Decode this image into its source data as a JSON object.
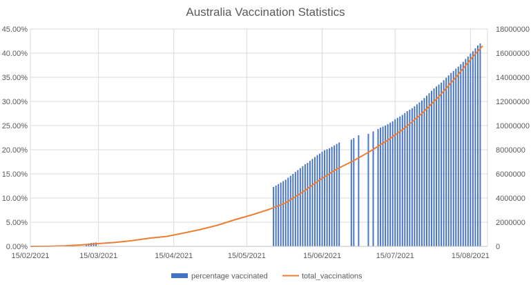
{
  "chart_data": {
    "type": "bar",
    "title": "Australia Vaccination Statistics",
    "x_axis": {
      "type": "date",
      "min": "2021-02-15",
      "max": "2021-08-22",
      "ticks": [
        "2021-02-15",
        "2021-03-15",
        "2021-04-15",
        "2021-05-15",
        "2021-06-15",
        "2021-07-15",
        "2021-08-15"
      ],
      "tick_labels": [
        "15/02/2021",
        "15/03/2021",
        "15/04/2021",
        "15/05/2021",
        "15/06/2021",
        "15/07/2021",
        "15/08/2021"
      ]
    },
    "y_axis_left": {
      "min": 0,
      "max": 45,
      "step": 5,
      "unit": "%",
      "tick_labels": [
        "0.00%",
        "5.00%",
        "10.00%",
        "15.00%",
        "20.00%",
        "25.00%",
        "30.00%",
        "35.00%",
        "40.00%",
        "45.00%"
      ]
    },
    "y_axis_right": {
      "min": 0,
      "max": 18000000,
      "step": 2000000,
      "tick_labels": [
        "0",
        "2000000",
        "4000000",
        "6000000",
        "8000000",
        "10000000",
        "12000000",
        "14000000",
        "16000000",
        "18000000"
      ]
    },
    "grid": true,
    "legend_position": "bottom",
    "legend": [
      {
        "label": "percentage vaccinated",
        "kind": "bar",
        "color": "#4472C4"
      },
      {
        "label": "total_vaccinations",
        "kind": "line",
        "color": "#ED7D31"
      }
    ],
    "series": [
      {
        "name": "percentage vaccinated",
        "type": "bar",
        "axis": "left",
        "color": "#4472C4",
        "points": [
          [
            "2021-03-10",
            0.5
          ],
          [
            "2021-03-11",
            0.6
          ],
          [
            "2021-03-12",
            0.7
          ],
          [
            "2021-03-13",
            0.75
          ],
          [
            "2021-03-14",
            0.8
          ],
          [
            "2021-05-26",
            12.3
          ],
          [
            "2021-05-27",
            12.6
          ],
          [
            "2021-05-28",
            12.9
          ],
          [
            "2021-05-29",
            13.2
          ],
          [
            "2021-05-30",
            13.5
          ],
          [
            "2021-05-31",
            13.8
          ],
          [
            "2021-06-01",
            14.2
          ],
          [
            "2021-06-02",
            14.6
          ],
          [
            "2021-06-03",
            15.0
          ],
          [
            "2021-06-04",
            15.4
          ],
          [
            "2021-06-05",
            15.8
          ],
          [
            "2021-06-06",
            16.2
          ],
          [
            "2021-06-07",
            16.6
          ],
          [
            "2021-06-08",
            17.0
          ],
          [
            "2021-06-09",
            17.3
          ],
          [
            "2021-06-10",
            17.7
          ],
          [
            "2021-06-11",
            18.1
          ],
          [
            "2021-06-12",
            18.5
          ],
          [
            "2021-06-13",
            18.9
          ],
          [
            "2021-06-14",
            19.2
          ],
          [
            "2021-06-15",
            19.6
          ],
          [
            "2021-06-16",
            19.9
          ],
          [
            "2021-06-17",
            20.1
          ],
          [
            "2021-06-18",
            20.3
          ],
          [
            "2021-06-19",
            20.6
          ],
          [
            "2021-06-20",
            20.9
          ],
          [
            "2021-06-21",
            21.2
          ],
          [
            "2021-06-22",
            21.5
          ],
          [
            "2021-06-27",
            22.1
          ],
          [
            "2021-06-28",
            22.4
          ],
          [
            "2021-06-30",
            23.0
          ],
          [
            "2021-07-04",
            23.3
          ],
          [
            "2021-07-06",
            23.8
          ],
          [
            "2021-07-08",
            24.3
          ],
          [
            "2021-07-09",
            24.6
          ],
          [
            "2021-07-10",
            24.8
          ],
          [
            "2021-07-11",
            25.0
          ],
          [
            "2021-07-12",
            25.3
          ],
          [
            "2021-07-13",
            25.6
          ],
          [
            "2021-07-14",
            25.9
          ],
          [
            "2021-07-15",
            26.3
          ],
          [
            "2021-07-16",
            26.6
          ],
          [
            "2021-07-17",
            26.9
          ],
          [
            "2021-07-18",
            27.2
          ],
          [
            "2021-07-19",
            27.6
          ],
          [
            "2021-07-20",
            28.0
          ],
          [
            "2021-07-21",
            28.3
          ],
          [
            "2021-07-22",
            28.6
          ],
          [
            "2021-07-23",
            29.0
          ],
          [
            "2021-07-24",
            29.4
          ],
          [
            "2021-07-25",
            29.8
          ],
          [
            "2021-07-26",
            30.2
          ],
          [
            "2021-07-27",
            30.7
          ],
          [
            "2021-07-28",
            31.2
          ],
          [
            "2021-07-29",
            31.7
          ],
          [
            "2021-07-30",
            32.2
          ],
          [
            "2021-07-31",
            32.7
          ],
          [
            "2021-08-01",
            33.1
          ],
          [
            "2021-08-02",
            33.5
          ],
          [
            "2021-08-03",
            33.9
          ],
          [
            "2021-08-04",
            34.4
          ],
          [
            "2021-08-05",
            34.9
          ],
          [
            "2021-08-06",
            35.4
          ],
          [
            "2021-08-07",
            35.9
          ],
          [
            "2021-08-08",
            36.3
          ],
          [
            "2021-08-09",
            36.8
          ],
          [
            "2021-08-10",
            37.2
          ],
          [
            "2021-08-11",
            37.7
          ],
          [
            "2021-08-12",
            38.2
          ],
          [
            "2021-08-13",
            38.8
          ],
          [
            "2021-08-14",
            39.3
          ],
          [
            "2021-08-15",
            39.9
          ],
          [
            "2021-08-16",
            40.4
          ],
          [
            "2021-08-17",
            41.0
          ],
          [
            "2021-08-18",
            41.6
          ],
          [
            "2021-08-19",
            42.0
          ]
        ]
      },
      {
        "name": "total_vaccinations",
        "type": "line",
        "axis": "right",
        "color": "#ED7D31",
        "points": [
          [
            "2021-02-15",
            0
          ],
          [
            "2021-02-22",
            10000
          ],
          [
            "2021-03-01",
            40000
          ],
          [
            "2021-03-08",
            120000
          ],
          [
            "2021-03-15",
            230000
          ],
          [
            "2021-03-22",
            330000
          ],
          [
            "2021-03-29",
            480000
          ],
          [
            "2021-04-05",
            680000
          ],
          [
            "2021-04-12",
            820000
          ],
          [
            "2021-04-19",
            1100000
          ],
          [
            "2021-04-26",
            1400000
          ],
          [
            "2021-05-03",
            1750000
          ],
          [
            "2021-05-10",
            2200000
          ],
          [
            "2021-05-17",
            2600000
          ],
          [
            "2021-05-24",
            3050000
          ],
          [
            "2021-05-31",
            3600000
          ],
          [
            "2021-06-07",
            4500000
          ],
          [
            "2021-06-14",
            5500000
          ],
          [
            "2021-06-21",
            6400000
          ],
          [
            "2021-06-28",
            7100000
          ],
          [
            "2021-07-05",
            7900000
          ],
          [
            "2021-07-12",
            8800000
          ],
          [
            "2021-07-19",
            9800000
          ],
          [
            "2021-07-26",
            11000000
          ],
          [
            "2021-08-02",
            12400000
          ],
          [
            "2021-08-09",
            14000000
          ],
          [
            "2021-08-16",
            15700000
          ],
          [
            "2021-08-20",
            16600000
          ]
        ]
      }
    ]
  }
}
